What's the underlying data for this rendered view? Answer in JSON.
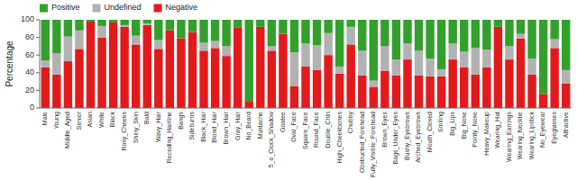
{
  "chart_data": {
    "type": "bar",
    "stacked": true,
    "ylabel": "Percentage",
    "categories": [
      "Male",
      "Young",
      "Middle_Aged",
      "Senior",
      "Asian",
      "White",
      "Black",
      "Rosy_Cheeks",
      "Shiny_Skin",
      "Bald",
      "Wavy_Hair",
      "Receding_Hairline",
      "Bangs",
      "Sideburns",
      "Black_Hair",
      "Blond_Hair",
      "Brown_Hair",
      "Gray_Hair",
      "No_Beard",
      "Mustache",
      "5_o_Clock_Shadow",
      "Goatee",
      "Oval_Face",
      "Square_Face",
      "Round_Face",
      "Double_Chin",
      "High_Cheekbones",
      "Chubby",
      "Obstructed_Forehead",
      "Fully_Visible_Forehead",
      "Brown_Eyes",
      "Bags_Under_Eyes",
      "Bushy_Eyebrows",
      "Arched_Eyebrows",
      "Mouth_Closed",
      "Smiling",
      "Big_Lips",
      "Big_Nose",
      "Pointy_Nose",
      "Heavy_Makeup",
      "Wearing_Hat",
      "Wearing_Earrings",
      "Wearing_Necktie",
      "Wearing_Lipstick",
      "No_Eyewear",
      "Eyeglasses",
      "Attractive"
    ],
    "series": [
      {
        "name": "Negative",
        "color": "#e31a1c",
        "values": [
          46,
          38,
          53,
          67,
          98,
          80,
          97,
          92,
          72,
          94,
          67,
          88,
          79,
          86,
          65,
          68,
          59,
          91,
          8,
          92,
          65,
          84,
          25,
          47,
          43,
          60,
          39,
          72,
          37,
          24,
          42,
          37,
          55,
          37,
          36,
          36,
          55,
          46,
          38,
          46,
          92,
          55,
          79,
          38,
          16,
          68,
          28
        ]
      },
      {
        "name": "Undefined",
        "color": "#b2b2b2",
        "values": [
          8,
          24,
          28,
          21,
          0,
          13,
          0,
          2,
          10,
          2,
          10,
          0,
          0,
          0,
          9,
          8,
          11,
          0,
          0,
          0,
          5,
          0,
          38,
          26,
          28,
          25,
          8,
          20,
          28,
          7,
          28,
          18,
          18,
          28,
          20,
          8,
          18,
          18,
          30,
          20,
          0,
          15,
          5,
          18,
          0,
          10,
          15
        ]
      },
      {
        "name": "Positive",
        "color": "#33a02c",
        "values": [
          46,
          38,
          19,
          12,
          2,
          7,
          3,
          6,
          18,
          4,
          23,
          12,
          21,
          14,
          26,
          24,
          30,
          9,
          92,
          8,
          30,
          16,
          37,
          27,
          29,
          15,
          53,
          8,
          35,
          69,
          30,
          45,
          27,
          35,
          44,
          56,
          27,
          36,
          32,
          34,
          8,
          30,
          16,
          44,
          84,
          22,
          57
        ]
      }
    ],
    "ylim": [
      0,
      100
    ],
    "yticks": [
      0,
      20,
      40,
      60,
      80,
      100
    ]
  }
}
